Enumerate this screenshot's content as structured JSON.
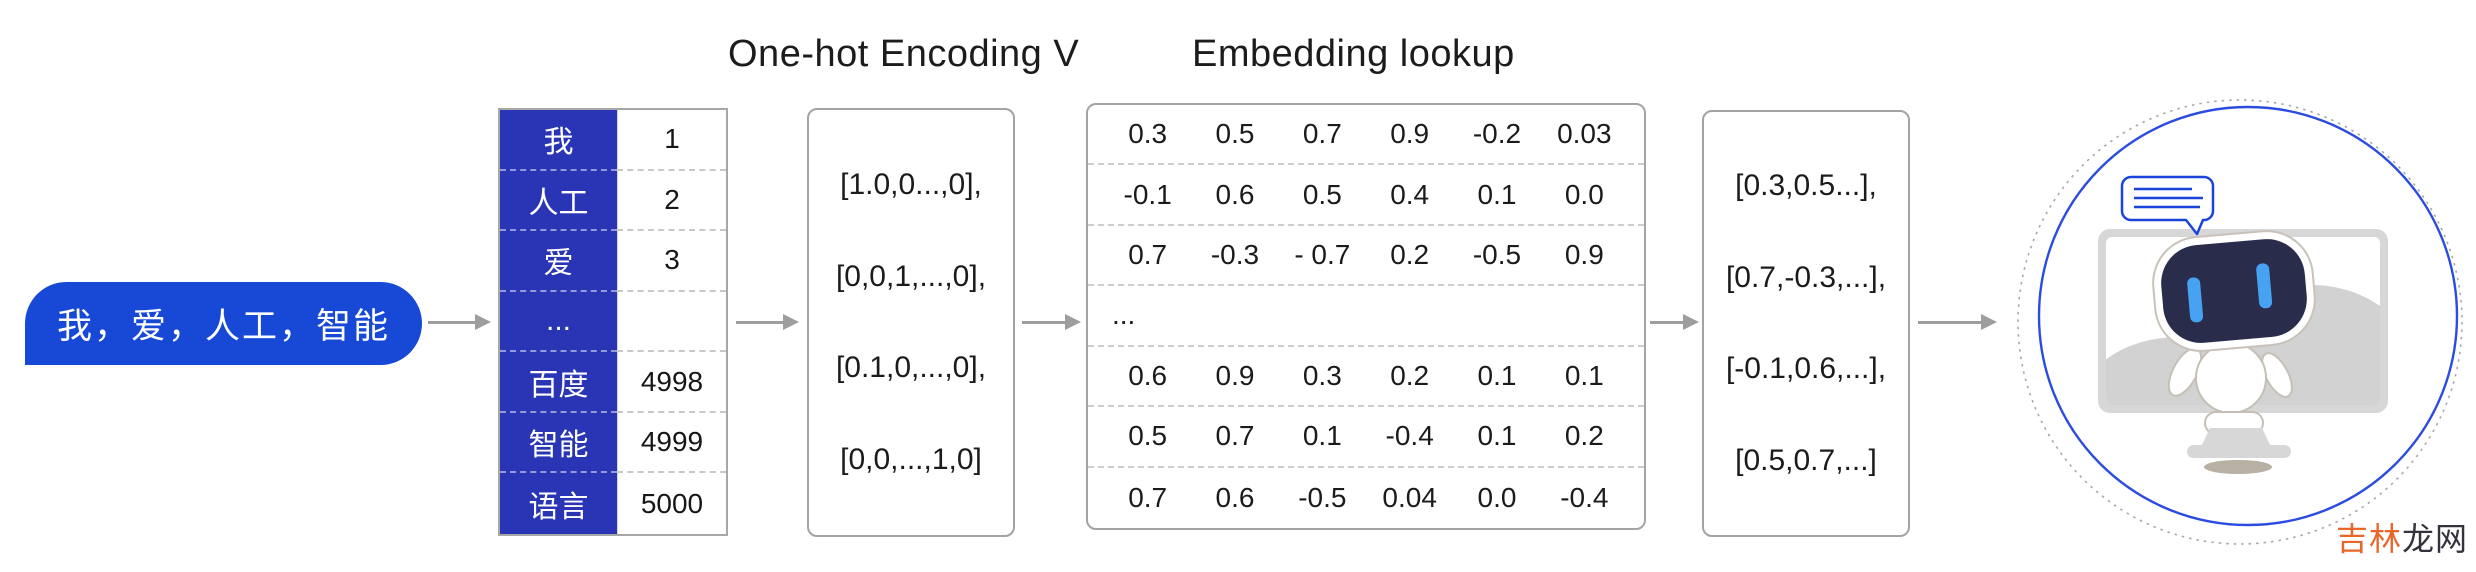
{
  "title_row": {
    "onehot": "One-hot Encoding V",
    "embedding": "Embedding lookup"
  },
  "input": {
    "sentence": "我，爱，人工，智能"
  },
  "vocab_table": {
    "rows": [
      {
        "word": "我",
        "id": "1"
      },
      {
        "word": "人工",
        "id": "2"
      },
      {
        "word": "爱",
        "id": "3"
      },
      {
        "word": "...",
        "id": ""
      },
      {
        "word": "百度",
        "id": "4998"
      },
      {
        "word": "智能",
        "id": "4999"
      },
      {
        "word": "语言",
        "id": "5000"
      }
    ]
  },
  "onehot_box": {
    "vectors": [
      "[1.0,0...,0],",
      "[0,0,1,...,0],",
      "[0.1,0,...,0],",
      "[0,0,...,1,0]"
    ]
  },
  "embedding_matrix": {
    "rows": [
      [
        "0.3",
        "0.5",
        "0.7",
        "0.9",
        "-0.2",
        "0.03"
      ],
      [
        "-0.1",
        "0.6",
        "0.5",
        "0.4",
        "0.1",
        "0.0"
      ],
      [
        "0.7",
        "-0.3",
        "- 0.7",
        "0.2",
        "-0.5",
        "0.9"
      ],
      [
        "..."
      ],
      [
        "0.6",
        "0.9",
        "0.3",
        "0.2",
        "0.1",
        "0.1"
      ],
      [
        "0.5",
        "0.7",
        "0.1",
        "-0.4",
        "0.1",
        "0.2"
      ],
      [
        "0.7",
        "0.6",
        "-0.5",
        "0.04",
        "0.0",
        "-0.4"
      ]
    ]
  },
  "output_box": {
    "vectors": [
      "[0.3,0.5...],",
      "[0.7,-0.3,...],",
      "[-0.1,0.6,...],",
      "[0.5,0.7,...]"
    ]
  },
  "watermark": {
    "brand_orange": "吉林",
    "brand_dark": "龙网"
  },
  "colors": {
    "pill_blue": "#1749d6",
    "table_blue": "#2a35b5",
    "accent_blue": "#1b44da",
    "circle_blue": "#2b4ce0",
    "arrow_gray": "#9e9e9e",
    "border_gray": "#a3a3a3",
    "robot_navy": "#292c4b",
    "robot_eye_blue": "#47a3f2",
    "monitor_gray": "#d7d7d7",
    "hill_gray": "#d2d2d2",
    "shadow_tan": "#b7b0a3",
    "watermark_orange": "#e8662a",
    "watermark_dark": "#33333d"
  }
}
